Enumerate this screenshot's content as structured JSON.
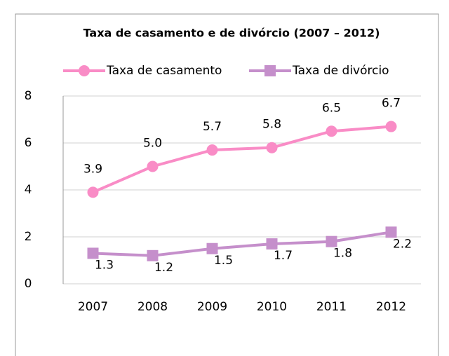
{
  "chart_data": {
    "type": "line",
    "title": "Taxa de casamento e de divórcio (2007 – 2012)",
    "categories": [
      "2007",
      "2008",
      "2009",
      "2010",
      "2011",
      "2012"
    ],
    "series": [
      {
        "name": "Taxa de casamento",
        "color": "#f98cc6",
        "marker": "circle",
        "values": [
          3.9,
          5.0,
          5.7,
          5.8,
          6.5,
          6.7
        ],
        "value_labels": [
          "3.9",
          "5.0",
          "5.7",
          "5.8",
          "6.5",
          "6.7"
        ]
      },
      {
        "name": "Taxa de divórcio",
        "color": "#c58fcb",
        "marker": "square",
        "values": [
          1.3,
          1.2,
          1.5,
          1.7,
          1.8,
          2.2
        ],
        "value_labels": [
          "1.3",
          "1.2",
          "1.5",
          "1.7",
          "1.8",
          "2.2"
        ]
      }
    ],
    "ylim": [
      0,
      8
    ],
    "yticks": [
      0,
      2,
      4,
      6,
      8
    ],
    "grid": true,
    "legend": "top"
  }
}
